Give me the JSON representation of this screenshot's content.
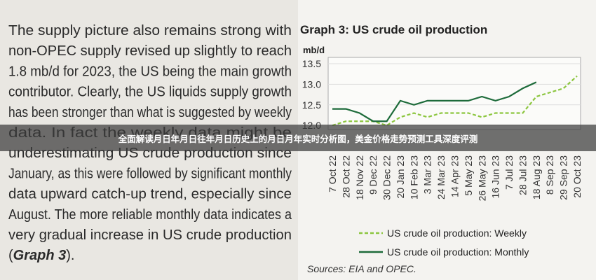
{
  "document": {
    "paragraph": [
      "The supply picture also remains strong with",
      "non-OPEC supply revised up slightly to reach",
      "1.8 mb/d for 2023, the US being the main growth",
      "contributor. Clearly, the US liquids supply growth",
      "has been stronger than what is suggested by weekly",
      "data. In fact the weekly data might be",
      "underestimating US crude production since",
      "January, as this were followed by significant monthly",
      "data upward catch-up trend, especially since",
      "August. The more reliable monthly data indicates a",
      "very gradual increase in US crude production"
    ],
    "paragraph_end": [
      "(",
      "Graph 3",
      ")."
    ],
    "banner": "全面解读月日年月日往年月日历史上的月日月年实时分析图，美金价格走势预测工具深度评测",
    "source": "Sources: EIA and OPEC."
  },
  "chart_data": {
    "type": "line",
    "title": "Graph 3: US crude oil production",
    "y_label": "mb/d",
    "categories": [
      "7 Oct 22",
      "28 Oct 22",
      "18 Nov 22",
      "9 Dec 22",
      "30 Dec 22",
      "20 Jan 23",
      "10 Feb 23",
      "3 Mar 23",
      "24 Mar 23",
      "14 Apr 23",
      "5 May 23",
      "26 May 23",
      "16 Jun 23",
      "7 Jul 23",
      "28 Jul 23",
      "18 Aug 23",
      "8 Sep 23",
      "29 Sep 23",
      "20 Oct 23"
    ],
    "series": [
      {
        "name": "US crude oil production: Weekly",
        "color": "#8cc63f",
        "dash": true,
        "values": [
          12.0,
          12.1,
          12.1,
          12.1,
          12.0,
          12.2,
          12.3,
          12.2,
          12.3,
          12.3,
          12.3,
          12.2,
          12.3,
          12.3,
          12.3,
          12.7,
          12.8,
          12.9,
          13.2
        ]
      },
      {
        "name": "US crude oil production: Monthly",
        "color": "#1d6b3a",
        "dash": false,
        "values": [
          12.4,
          12.4,
          12.3,
          12.1,
          12.1,
          12.6,
          12.5,
          12.6,
          12.6,
          12.6,
          12.6,
          12.7,
          12.6,
          12.7,
          12.9,
          13.05,
          null,
          null,
          null
        ]
      }
    ],
    "ylim": [
      11.9,
      13.5
    ],
    "yticks": [
      {
        "value": 12,
        "label": "12.0"
      },
      12.5,
      {
        "value": 13,
        "label": "13.0"
      },
      13.5
    ]
  }
}
